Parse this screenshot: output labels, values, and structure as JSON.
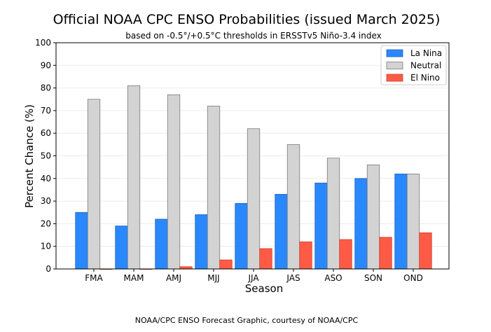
{
  "chart_data": {
    "type": "bar",
    "title": "Official NOAA CPC ENSO Probabilities (issued March 2025)",
    "subtitle": "based on -0.5°/+0.5°C thresholds in ERSSTv5 Niño-3.4 index",
    "xlabel": "Season",
    "ylabel": "Percent Chance (%)",
    "ylim": [
      0,
      100
    ],
    "yticks": [
      0,
      10,
      20,
      30,
      40,
      50,
      60,
      70,
      80,
      90,
      100
    ],
    "grid": true,
    "legend_position": "top-right",
    "categories": [
      "FMA",
      "MAM",
      "AMJ",
      "MJJ",
      "JJA",
      "JAS",
      "ASO",
      "SON",
      "OND"
    ],
    "series": [
      {
        "name": "La Nina",
        "color": "#2a88ff",
        "values": [
          25,
          19,
          22,
          24,
          29,
          33,
          38,
          40,
          42
        ]
      },
      {
        "name": "Neutral",
        "color": "#d3d3d3",
        "values": [
          75,
          81,
          77,
          72,
          62,
          55,
          49,
          46,
          42
        ]
      },
      {
        "name": "El Nino",
        "color": "#ff5a45",
        "values": [
          0,
          0,
          1,
          4,
          9,
          12,
          13,
          14,
          16
        ]
      }
    ]
  },
  "credit": "NOAA/CPC ENSO Forecast Graphic, courtesy of NOAA/CPC"
}
